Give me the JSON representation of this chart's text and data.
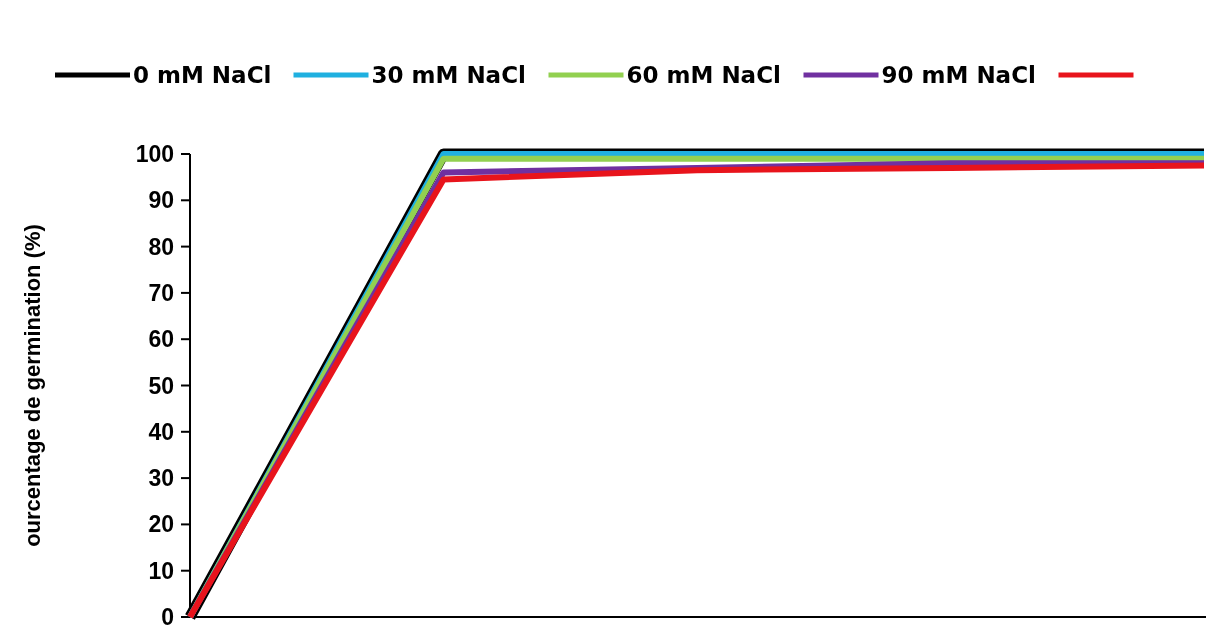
{
  "chart_data": {
    "type": "line",
    "ylabel": "ourcentage de germination (%)",
    "categories": [
      null,
      null,
      null,
      null,
      null
    ],
    "ylim": [
      0,
      100
    ],
    "yticks": [
      0,
      10,
      20,
      30,
      40,
      50,
      60,
      70,
      80,
      90,
      100
    ],
    "legend": "top",
    "grid": false,
    "marker": "none",
    "line_style": "solid",
    "tick_labels": "y",
    "series": [
      {
        "name": "0 mM NaCl",
        "color": "#000000",
        "values": [
          0,
          100,
          100,
          100,
          100
        ]
      },
      {
        "name": "30 mM NaCl",
        "color": "#1fb0e0",
        "values": [
          0,
          100,
          100,
          100,
          100
        ]
      },
      {
        "name": "60 mM NaCl",
        "color": "#92d050",
        "values": [
          0,
          99,
          99,
          99,
          99
        ]
      },
      {
        "name": "90 mM NaCl",
        "color": "#7030a0",
        "values": [
          0,
          96,
          97,
          98,
          98
        ]
      },
      {
        "color": "#e8141c",
        "values": [
          0,
          94.5,
          96.5,
          97,
          97.5
        ]
      }
    ]
  }
}
